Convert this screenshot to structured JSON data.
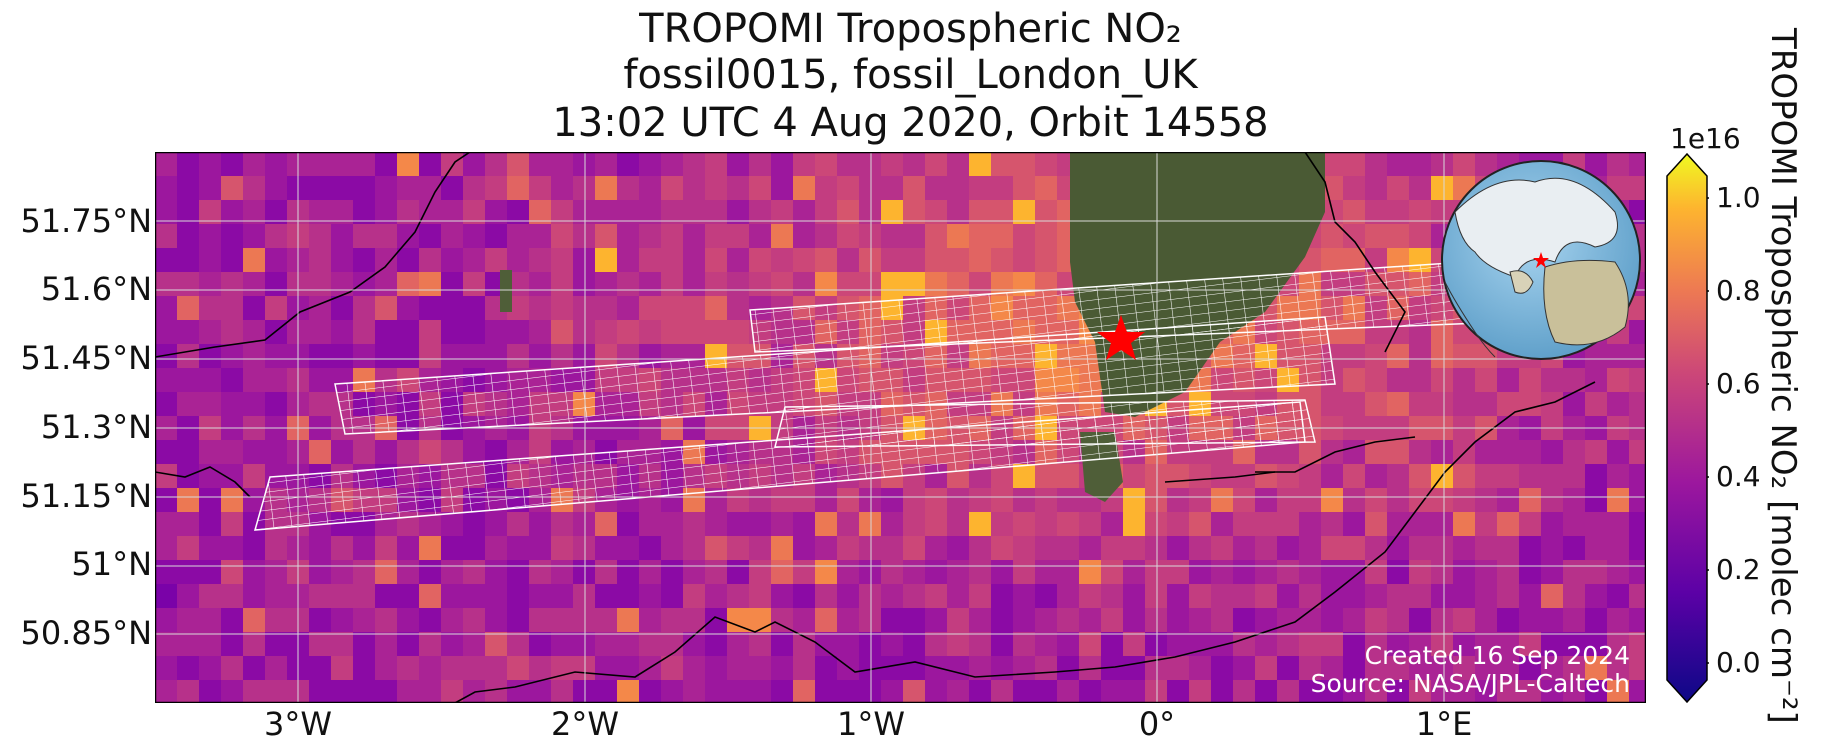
{
  "title": {
    "line1": "TROPOMI Tropospheric NO₂",
    "line2": "fossil0015, fossil_London_UK",
    "line3": "13:02 UTC 4 Aug 2020, Orbit 14558"
  },
  "map": {
    "lat_labels": [
      "51.75°N",
      "51.6°N",
      "51.45°N",
      "51.3°N",
      "51.15°N",
      "51°N",
      "50.85°N"
    ],
    "lon_labels": [
      "3°W",
      "2°W",
      "1°W",
      "0°",
      "1°E"
    ],
    "extent": {
      "lon_min": -3.5,
      "lon_max": 1.7,
      "lat_min": 50.72,
      "lat_max": 51.9
    },
    "target": {
      "lon": -0.13,
      "lat": 51.51,
      "marker": "star",
      "color": "#ff0000"
    },
    "credit_line1": "Created 16 Sep 2024",
    "credit_line2": "Source: NASA/JPL-Caltech",
    "colormap": "plasma"
  },
  "colorbar": {
    "exponent": "1e16",
    "ticks": [
      "0.0",
      "0.2",
      "0.4",
      "0.6",
      "0.8",
      "1.0"
    ],
    "label": "TROPOMI Tropospheric NO₂ [molec cm⁻²]"
  }
}
